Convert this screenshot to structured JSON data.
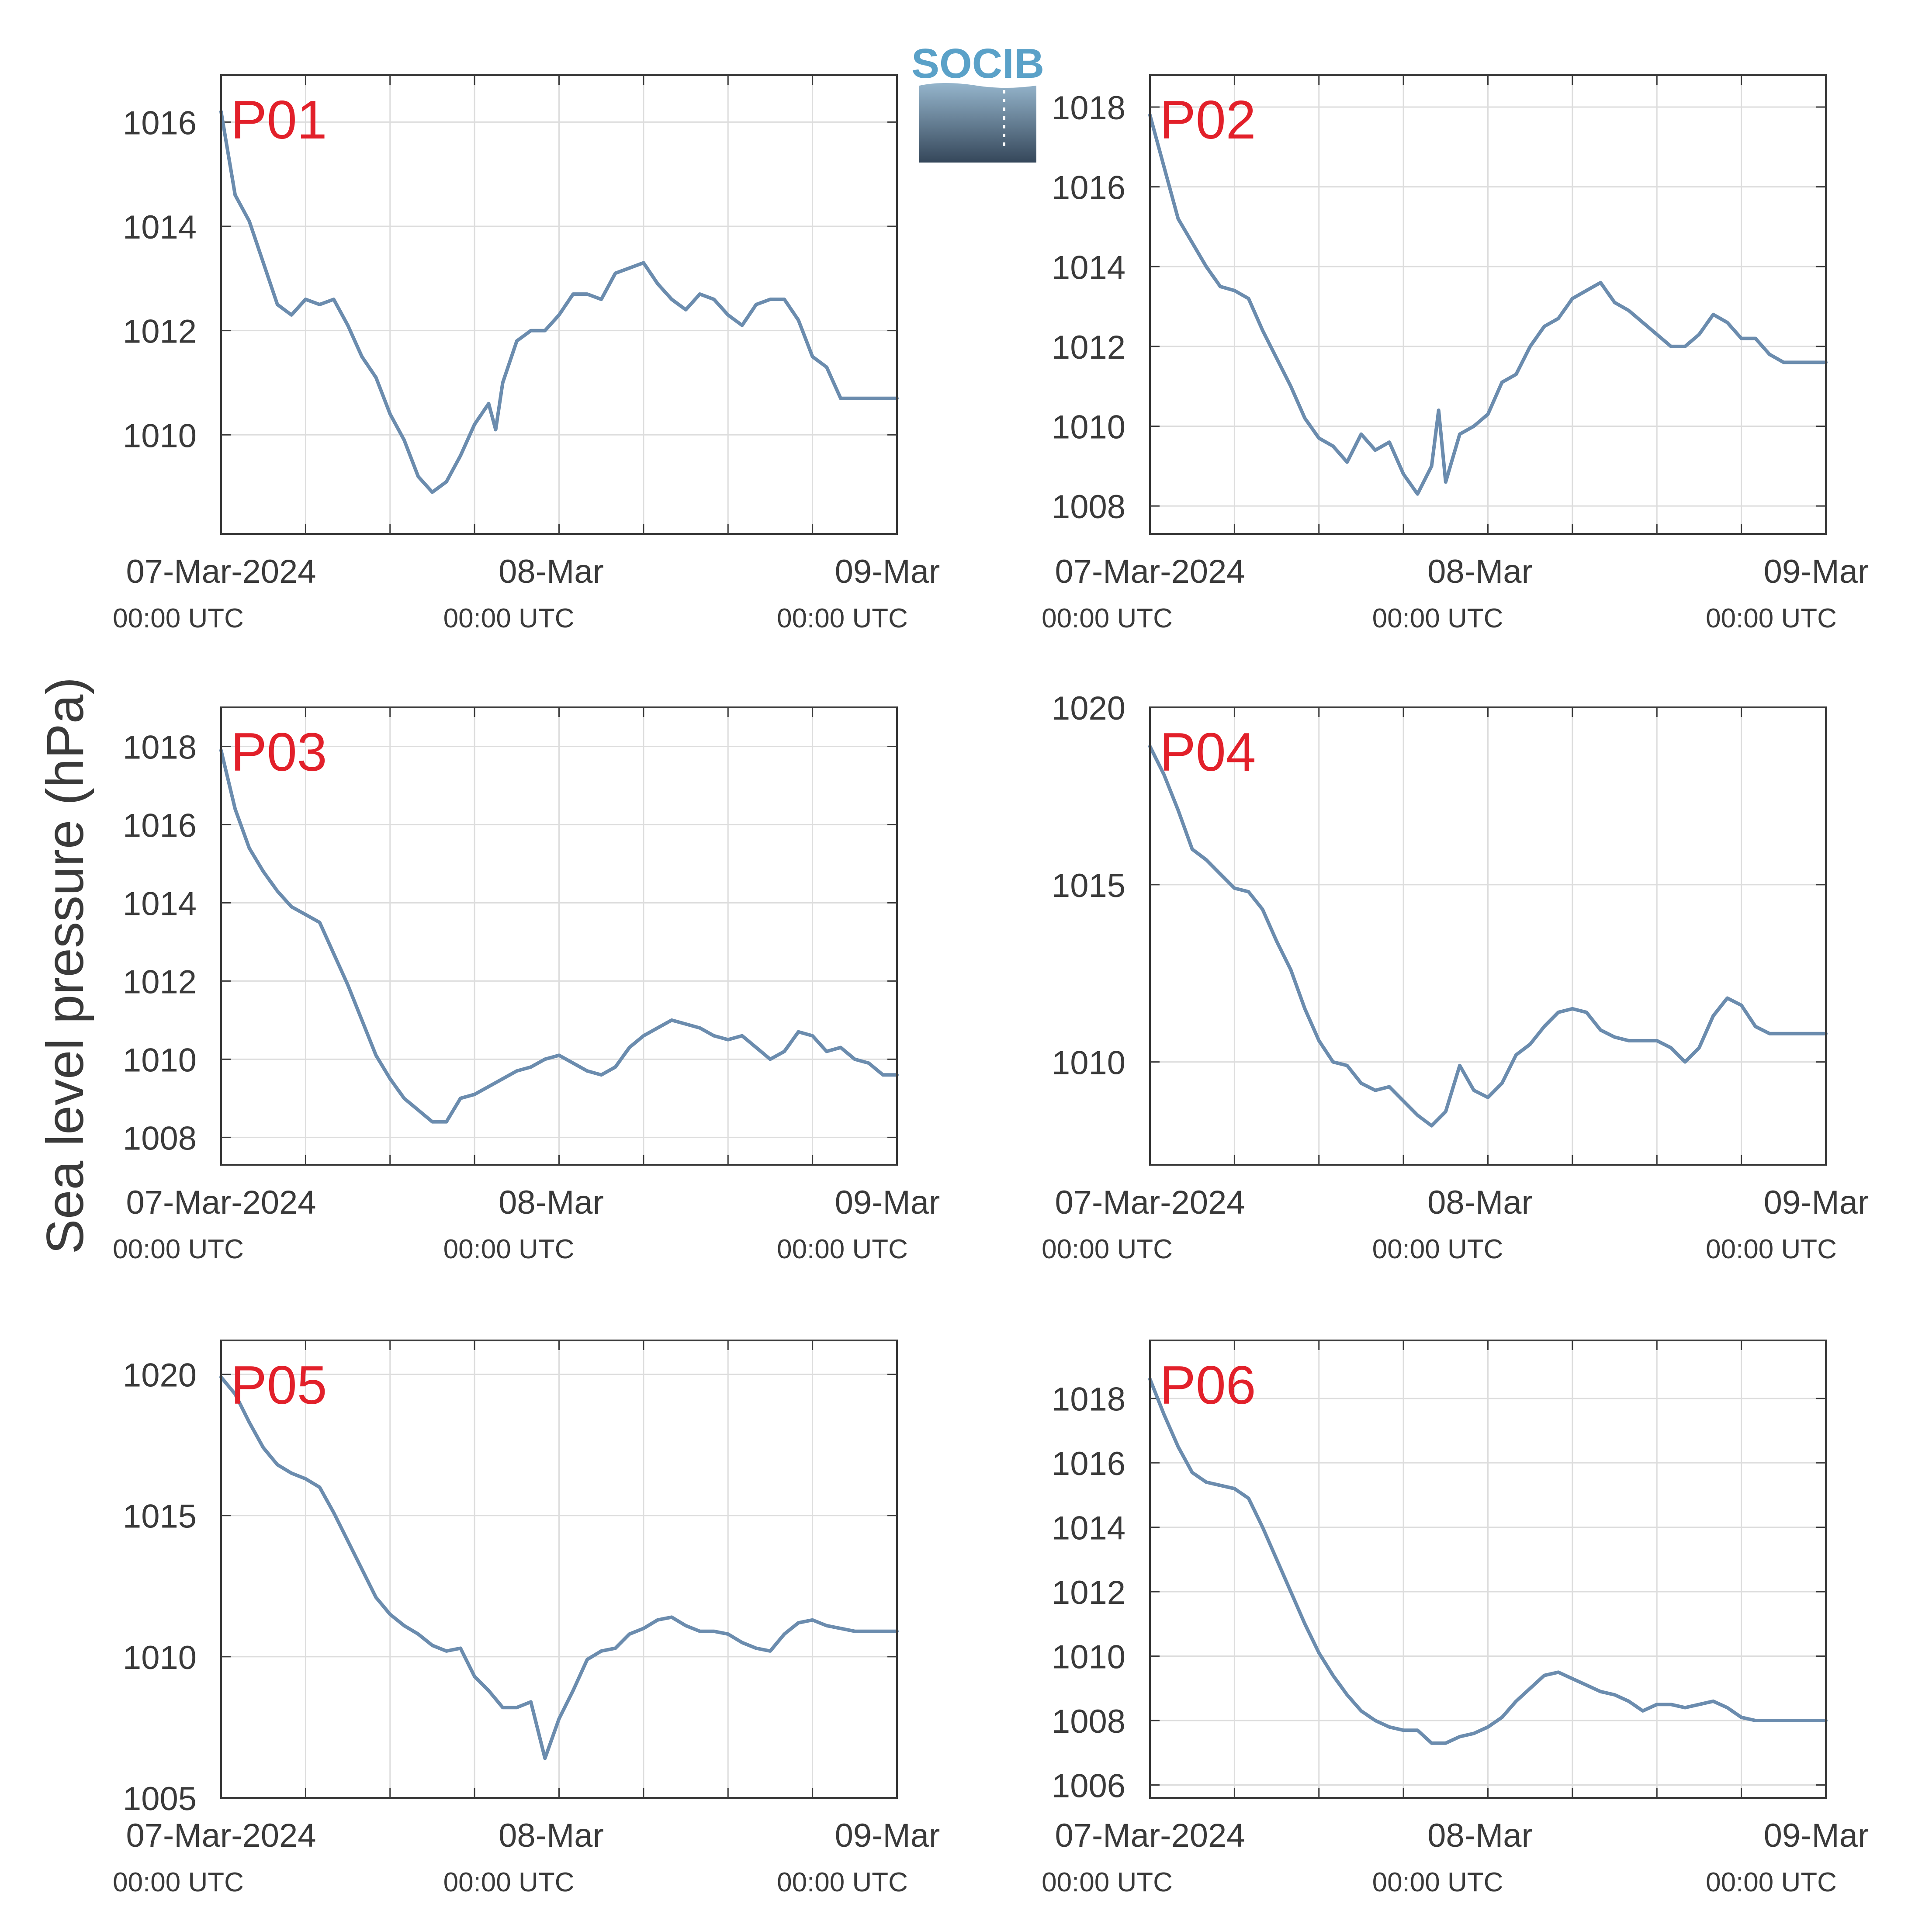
{
  "figure": {
    "ylabel": "Sea level pressure (hPa)",
    "logo_text": "SOCIB",
    "colors": {
      "line": "#6b8cae",
      "station_label": "#e2202a",
      "axis": "#3a3a3a",
      "grid": "#dddddd",
      "text": "#3a3a3a",
      "logo_text": "#5aa1c8",
      "logo_top": "#95b5cc",
      "logo_bottom": "#35475a"
    }
  },
  "chart_data": [
    {
      "type": "line",
      "station": "P01",
      "xlim": [
        0,
        48
      ],
      "x_major_labels": [
        {
          "x": 0,
          "label": "07-Mar-2024",
          "sub": "00:00 UTC"
        },
        {
          "x": 24,
          "label": "08-Mar",
          "sub": "00:00 UTC"
        },
        {
          "x": 48,
          "label": "09-Mar",
          "sub": "00:00 UTC"
        }
      ],
      "x_grid": [
        6,
        12,
        18,
        24,
        30,
        36,
        42
      ],
      "ylim": [
        1008.1,
        1016.9
      ],
      "yticks": [
        1010,
        1012,
        1014,
        1016
      ],
      "series": [
        {
          "x": [
            0,
            1,
            2,
            3,
            4,
            5,
            6,
            7,
            8,
            9,
            10,
            11,
            12,
            13,
            14,
            15,
            16,
            17,
            18,
            19,
            19.5,
            20,
            21,
            22,
            23,
            24,
            25,
            26,
            27,
            28,
            29,
            30,
            31,
            32,
            33,
            34,
            35,
            36,
            37,
            38,
            39,
            40,
            41,
            42,
            43,
            44,
            45,
            46,
            47,
            48
          ],
          "y": [
            1016.2,
            1014.6,
            1014.1,
            1013.3,
            1012.5,
            1012.3,
            1012.6,
            1012.5,
            1012.6,
            1012.1,
            1011.5,
            1011.1,
            1010.4,
            1009.9,
            1009.2,
            1008.9,
            1009.1,
            1009.6,
            1010.2,
            1010.6,
            1010.1,
            1011.0,
            1011.8,
            1012.0,
            1012.0,
            1012.3,
            1012.7,
            1012.7,
            1012.6,
            1013.1,
            1013.2,
            1013.3,
            1012.9,
            1012.6,
            1012.4,
            1012.7,
            1012.6,
            1012.3,
            1012.1,
            1012.5,
            1012.6,
            1012.6,
            1012.2,
            1011.5,
            1011.3,
            1010.7,
            1010.7,
            1010.7,
            1010.7,
            1010.7
          ]
        }
      ]
    },
    {
      "type": "line",
      "station": "P02",
      "xlim": [
        0,
        48
      ],
      "x_major_labels": [
        {
          "x": 0,
          "label": "07-Mar-2024",
          "sub": "00:00 UTC"
        },
        {
          "x": 24,
          "label": "08-Mar",
          "sub": "00:00 UTC"
        },
        {
          "x": 48,
          "label": "09-Mar",
          "sub": "00:00 UTC"
        }
      ],
      "x_grid": [
        6,
        12,
        18,
        24,
        30,
        36,
        42
      ],
      "ylim": [
        1007.3,
        1018.8
      ],
      "yticks": [
        1008,
        1010,
        1012,
        1014,
        1016,
        1018
      ],
      "series": [
        {
          "x": [
            0,
            1,
            2,
            3,
            4,
            5,
            6,
            7,
            8,
            9,
            10,
            11,
            12,
            13,
            14,
            15,
            16,
            17,
            18,
            19,
            20,
            20.5,
            21,
            22,
            23,
            24,
            25,
            26,
            27,
            28,
            29,
            30,
            31,
            32,
            33,
            34,
            35,
            36,
            37,
            38,
            39,
            40,
            41,
            42,
            43,
            44,
            45,
            46,
            47,
            48
          ],
          "y": [
            1017.8,
            1016.5,
            1015.2,
            1014.6,
            1014.0,
            1013.5,
            1013.4,
            1013.2,
            1012.4,
            1011.7,
            1011.0,
            1010.2,
            1009.7,
            1009.5,
            1009.1,
            1009.8,
            1009.4,
            1009.6,
            1008.8,
            1008.3,
            1009.0,
            1010.4,
            1008.6,
            1009.8,
            1010.0,
            1010.3,
            1011.1,
            1011.3,
            1012.0,
            1012.5,
            1012.7,
            1013.2,
            1013.4,
            1013.6,
            1013.1,
            1012.9,
            1012.6,
            1012.3,
            1012.0,
            1012.0,
            1012.3,
            1012.8,
            1012.6,
            1012.2,
            1012.2,
            1011.8,
            1011.6,
            1011.6,
            1011.6,
            1011.6
          ]
        }
      ]
    },
    {
      "type": "line",
      "station": "P03",
      "xlim": [
        0,
        48
      ],
      "x_major_labels": [
        {
          "x": 0,
          "label": "07-Mar-2024",
          "sub": "00:00 UTC"
        },
        {
          "x": 24,
          "label": "08-Mar",
          "sub": "00:00 UTC"
        },
        {
          "x": 48,
          "label": "09-Mar",
          "sub": "00:00 UTC"
        }
      ],
      "x_grid": [
        6,
        12,
        18,
        24,
        30,
        36,
        42
      ],
      "ylim": [
        1007.3,
        1019.0
      ],
      "yticks": [
        1008,
        1010,
        1012,
        1014,
        1016,
        1018
      ],
      "series": [
        {
          "x": [
            0,
            1,
            2,
            3,
            4,
            5,
            6,
            7,
            8,
            9,
            10,
            11,
            12,
            13,
            14,
            15,
            16,
            17,
            18,
            19,
            20,
            21,
            22,
            23,
            24,
            25,
            26,
            27,
            28,
            29,
            30,
            31,
            32,
            33,
            34,
            35,
            36,
            37,
            38,
            39,
            40,
            41,
            42,
            43,
            44,
            45,
            46,
            47,
            48
          ],
          "y": [
            1017.9,
            1016.4,
            1015.4,
            1014.8,
            1014.3,
            1013.9,
            1013.7,
            1013.5,
            1012.7,
            1011.9,
            1011.0,
            1010.1,
            1009.5,
            1009.0,
            1008.7,
            1008.4,
            1008.4,
            1009.0,
            1009.1,
            1009.3,
            1009.5,
            1009.7,
            1009.8,
            1010.0,
            1010.1,
            1009.9,
            1009.7,
            1009.6,
            1009.8,
            1010.3,
            1010.6,
            1010.8,
            1011.0,
            1010.9,
            1010.8,
            1010.6,
            1010.5,
            1010.6,
            1010.3,
            1010.0,
            1010.2,
            1010.7,
            1010.6,
            1010.2,
            1010.3,
            1010.0,
            1009.9,
            1009.6,
            1009.6
          ]
        }
      ]
    },
    {
      "type": "line",
      "station": "P04",
      "xlim": [
        0,
        48
      ],
      "x_major_labels": [
        {
          "x": 0,
          "label": "07-Mar-2024",
          "sub": "00:00 UTC"
        },
        {
          "x": 24,
          "label": "08-Mar",
          "sub": "00:00 UTC"
        },
        {
          "x": 48,
          "label": "09-Mar",
          "sub": "00:00 UTC"
        }
      ],
      "x_grid": [
        6,
        12,
        18,
        24,
        30,
        36,
        42
      ],
      "ylim": [
        1007.1,
        1020.0
      ],
      "yticks": [
        1010,
        1015,
        1020
      ],
      "series": [
        {
          "x": [
            0,
            1,
            2,
            3,
            4,
            5,
            6,
            7,
            8,
            9,
            10,
            11,
            12,
            13,
            14,
            15,
            16,
            17,
            18,
            19,
            20,
            21,
            22,
            23,
            24,
            25,
            26,
            27,
            28,
            29,
            30,
            31,
            32,
            33,
            34,
            35,
            36,
            37,
            38,
            39,
            40,
            41,
            42,
            43,
            44,
            45,
            46,
            47,
            48
          ],
          "y": [
            1018.9,
            1018.1,
            1017.1,
            1016.0,
            1015.7,
            1015.3,
            1014.9,
            1014.8,
            1014.3,
            1013.4,
            1012.6,
            1011.5,
            1010.6,
            1010.0,
            1009.9,
            1009.4,
            1009.2,
            1009.3,
            1008.9,
            1008.5,
            1008.2,
            1008.6,
            1009.9,
            1009.2,
            1009.0,
            1009.4,
            1010.2,
            1010.5,
            1011.0,
            1011.4,
            1011.5,
            1011.4,
            1010.9,
            1010.7,
            1010.6,
            1010.6,
            1010.6,
            1010.4,
            1010.0,
            1010.4,
            1011.3,
            1011.8,
            1011.6,
            1011.0,
            1010.8,
            1010.8,
            1010.8,
            1010.8,
            1010.8
          ]
        }
      ]
    },
    {
      "type": "line",
      "station": "P05",
      "xlim": [
        0,
        48
      ],
      "x_major_labels": [
        {
          "x": 0,
          "label": "07-Mar-2024",
          "sub": "00:00 UTC"
        },
        {
          "x": 24,
          "label": "08-Mar",
          "sub": "00:00 UTC"
        },
        {
          "x": 48,
          "label": "09-Mar",
          "sub": "00:00 UTC"
        }
      ],
      "x_grid": [
        6,
        12,
        18,
        24,
        30,
        36,
        42
      ],
      "ylim": [
        1005.0,
        1021.2
      ],
      "yticks": [
        1005,
        1010,
        1015,
        1020
      ],
      "series": [
        {
          "x": [
            0,
            1,
            2,
            3,
            4,
            5,
            6,
            7,
            8,
            9,
            10,
            11,
            12,
            13,
            14,
            15,
            16,
            17,
            18,
            19,
            20,
            21,
            22,
            23,
            24,
            25,
            26,
            27,
            28,
            29,
            30,
            31,
            32,
            33,
            34,
            35,
            36,
            37,
            38,
            39,
            40,
            41,
            42,
            43,
            44,
            45,
            46,
            47,
            48
          ],
          "y": [
            1019.9,
            1019.3,
            1018.3,
            1017.4,
            1016.8,
            1016.5,
            1016.3,
            1016.0,
            1015.1,
            1014.1,
            1013.1,
            1012.1,
            1011.5,
            1011.1,
            1010.8,
            1010.4,
            1010.2,
            1010.3,
            1009.3,
            1008.8,
            1008.2,
            1008.2,
            1008.4,
            1006.4,
            1007.8,
            1008.8,
            1009.9,
            1010.2,
            1010.3,
            1010.8,
            1011.0,
            1011.3,
            1011.4,
            1011.1,
            1010.9,
            1010.9,
            1010.8,
            1010.5,
            1010.3,
            1010.2,
            1010.8,
            1011.2,
            1011.3,
            1011.1,
            1011.0,
            1010.9,
            1010.9,
            1010.9,
            1010.9
          ]
        }
      ]
    },
    {
      "type": "line",
      "station": "P06",
      "xlim": [
        0,
        48
      ],
      "x_major_labels": [
        {
          "x": 0,
          "label": "07-Mar-2024",
          "sub": "00:00 UTC"
        },
        {
          "x": 24,
          "label": "08-Mar",
          "sub": "00:00 UTC"
        },
        {
          "x": 48,
          "label": "09-Mar",
          "sub": "00:00 UTC"
        }
      ],
      "x_grid": [
        6,
        12,
        18,
        24,
        30,
        36,
        42
      ],
      "ylim": [
        1005.6,
        1019.8
      ],
      "yticks": [
        1006,
        1008,
        1010,
        1012,
        1014,
        1016,
        1018
      ],
      "series": [
        {
          "x": [
            0,
            1,
            2,
            3,
            4,
            5,
            6,
            7,
            8,
            9,
            10,
            11,
            12,
            13,
            14,
            15,
            16,
            17,
            18,
            19,
            20,
            21,
            22,
            23,
            24,
            25,
            26,
            27,
            28,
            29,
            30,
            31,
            32,
            33,
            34,
            35,
            36,
            37,
            38,
            39,
            40,
            41,
            42,
            43,
            44,
            45,
            46,
            47,
            48
          ],
          "y": [
            1018.6,
            1017.5,
            1016.5,
            1015.7,
            1015.4,
            1015.3,
            1015.2,
            1014.9,
            1014.0,
            1013.0,
            1012.0,
            1011.0,
            1010.1,
            1009.4,
            1008.8,
            1008.3,
            1008.0,
            1007.8,
            1007.7,
            1007.7,
            1007.3,
            1007.3,
            1007.5,
            1007.6,
            1007.8,
            1008.1,
            1008.6,
            1009.0,
            1009.4,
            1009.5,
            1009.3,
            1009.1,
            1008.9,
            1008.8,
            1008.6,
            1008.3,
            1008.5,
            1008.5,
            1008.4,
            1008.5,
            1008.6,
            1008.4,
            1008.1,
            1008.0,
            1008.0,
            1008.0,
            1008.0,
            1008.0,
            1008.0
          ]
        }
      ]
    }
  ]
}
